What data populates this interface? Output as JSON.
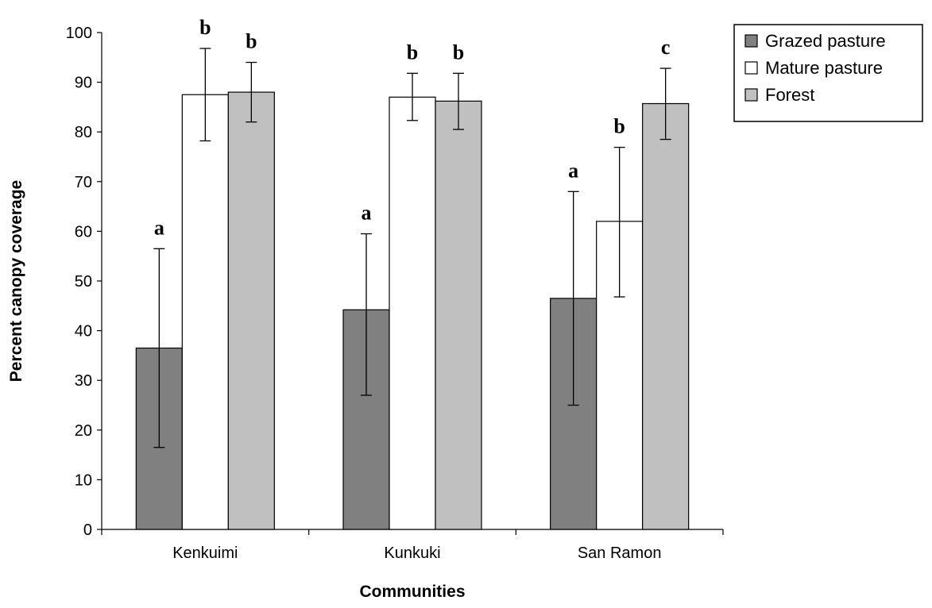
{
  "chart_data": {
    "type": "bar",
    "title": "",
    "xlabel": "Communities",
    "ylabel": "Percent canopy coverage",
    "ylim": [
      0,
      100
    ],
    "yticks": [
      0,
      10,
      20,
      30,
      40,
      50,
      60,
      70,
      80,
      90,
      100
    ],
    "grid": false,
    "legend_position": "top-right",
    "categories": [
      "Kenkuimi",
      "Kunkuki",
      "San Ramon"
    ],
    "series": [
      {
        "name": "Grazed pasture",
        "color": "#808080",
        "values": [
          36.5,
          44.2,
          46.5
        ],
        "error_low": [
          16.5,
          27.0,
          25.0
        ],
        "error_high": [
          56.5,
          59.5,
          68.0
        ],
        "labels": [
          "a",
          "a",
          "a"
        ]
      },
      {
        "name": "Mature pasture",
        "color": "#ffffff",
        "values": [
          87.5,
          87.0,
          62.0
        ],
        "error_low": [
          78.2,
          82.3,
          46.8
        ],
        "error_high": [
          96.8,
          91.8,
          76.9
        ],
        "labels": [
          "b",
          "b",
          "b"
        ]
      },
      {
        "name": "Forest",
        "color": "#c0c0c0",
        "values": [
          88.0,
          86.2,
          85.7
        ],
        "error_low": [
          82.0,
          80.5,
          78.5
        ],
        "error_high": [
          94.0,
          91.8,
          92.8
        ],
        "labels": [
          "b",
          "b",
          "c"
        ]
      }
    ]
  }
}
